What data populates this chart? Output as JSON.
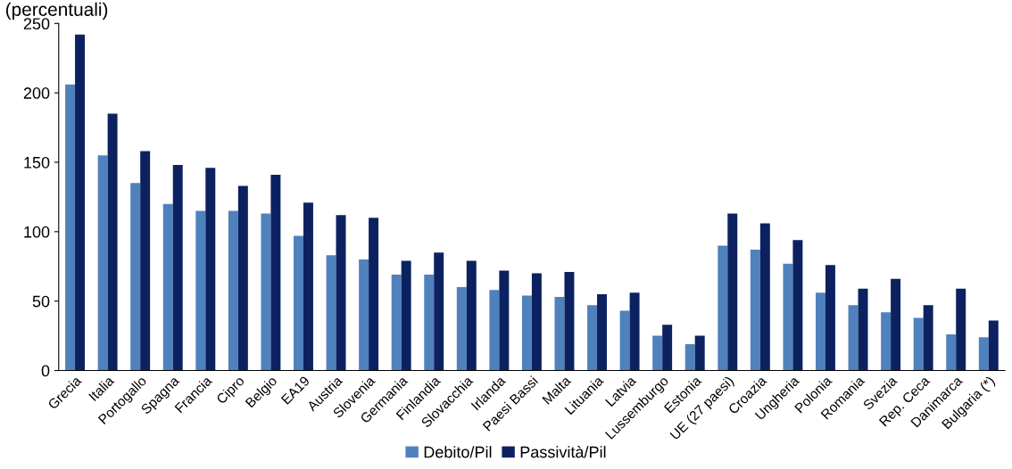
{
  "chart_data": {
    "type": "bar",
    "title": "(percentuali)",
    "categories": [
      "Grecia",
      "Italia",
      "Portogallo",
      "Spagna",
      "Francia",
      "Cipro",
      "Belgio",
      "EA19",
      "Austria",
      "Slovenia",
      "Germania",
      "Finlandia",
      "Slovacchia",
      "Irlanda",
      "Paesi Bassi",
      "Malta",
      "Lituania",
      "Latvia",
      "Lussemburgo",
      "Estonia",
      "UE (27 paesi)",
      "Croazia",
      "Ungheria",
      "Polonia",
      "Romania",
      "Svezia",
      "Rep. Ceca",
      "Danimarca",
      "Bulgaria (*)"
    ],
    "series": [
      {
        "name": "Debito/Pil",
        "color": "#4f81bd",
        "values": [
          206,
          155,
          135,
          120,
          115,
          115,
          113,
          97,
          83,
          80,
          69,
          69,
          60,
          58,
          54,
          53,
          47,
          43,
          25,
          19,
          90,
          87,
          77,
          56,
          47,
          42,
          38,
          26,
          24
        ]
      },
      {
        "name": "Passività/Pil",
        "color": "#0c2260",
        "values": [
          242,
          185,
          158,
          148,
          146,
          133,
          141,
          121,
          112,
          110,
          79,
          85,
          79,
          72,
          70,
          71,
          55,
          56,
          33,
          25,
          113,
          106,
          94,
          76,
          59,
          66,
          47,
          59,
          36
        ]
      }
    ],
    "ylim": [
      0,
      250
    ],
    "yticks": [
      0,
      50,
      100,
      150,
      200,
      250
    ],
    "grid": false,
    "legend": "bottom"
  }
}
